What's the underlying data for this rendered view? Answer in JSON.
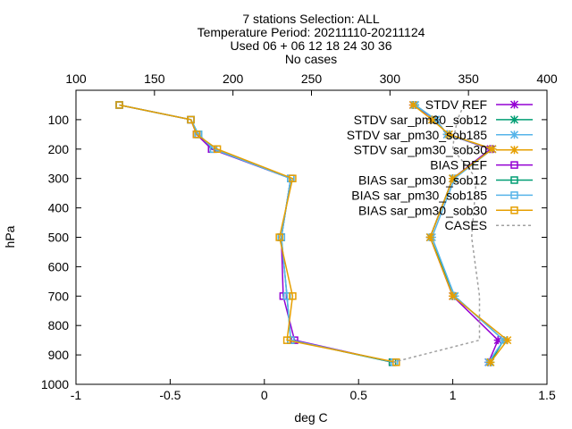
{
  "chart_data": {
    "type": "line",
    "title_lines": [
      "7 stations Selection: ALL",
      "Temperature  Period: 20211110-20211124",
      "Used 06 + 06 12 18 24 30 36",
      "No cases"
    ],
    "xlabel": "deg C",
    "ylabel": "hPa",
    "xlim": [
      -1,
      1.5
    ],
    "ylim": [
      1000,
      0
    ],
    "x2lim": [
      100,
      400
    ],
    "x_ticks": [
      "-1",
      "-0.5",
      "0",
      "0.5",
      "1",
      "1.5"
    ],
    "x2_ticks": [
      "100",
      "150",
      "200",
      "250",
      "300",
      "350",
      "400"
    ],
    "y_ticks": [
      "100",
      "200",
      "300",
      "400",
      "500",
      "600",
      "700",
      "800",
      "900",
      "1000"
    ],
    "grid": false,
    "legend_position": "top-right",
    "levels": [
      50,
      100,
      150,
      200,
      300,
      500,
      700,
      850,
      925
    ],
    "series": [
      {
        "name": "STDV REF",
        "marker": "x",
        "color": "#9400d3",
        "values": [
          0.79,
          0.91,
          0.97,
          1.2,
          1.0,
          0.88,
          1.0,
          1.24,
          1.19
        ]
      },
      {
        "name": "STDV sar_pm30_sob12",
        "marker": "x",
        "color": "#009e73",
        "values": [
          0.8,
          0.91,
          0.97,
          1.21,
          1.0,
          0.88,
          1.01,
          1.27,
          1.2
        ]
      },
      {
        "name": "STDV sar_pm30_sob185",
        "marker": "x",
        "color": "#56b4e9",
        "values": [
          0.8,
          0.91,
          0.97,
          1.21,
          1.01,
          0.89,
          1.01,
          1.27,
          1.19
        ]
      },
      {
        "name": "STDV sar_pm30_sob30",
        "marker": "x",
        "color": "#e69f00",
        "values": [
          0.79,
          0.89,
          0.98,
          1.21,
          1.0,
          0.88,
          1.0,
          1.29,
          1.2
        ]
      },
      {
        "name": "BIAS REF",
        "marker": "square",
        "color": "#9400d3",
        "values": [
          -0.77,
          -0.39,
          -0.36,
          -0.28,
          0.14,
          0.09,
          0.1,
          0.16,
          0.68
        ]
      },
      {
        "name": "BIAS sar_pm30_sob12",
        "marker": "square",
        "color": "#009e73",
        "values": [
          -0.77,
          -0.39,
          -0.35,
          -0.27,
          0.14,
          0.09,
          0.12,
          0.14,
          0.68
        ]
      },
      {
        "name": "BIAS sar_pm30_sob185",
        "marker": "square",
        "color": "#56b4e9",
        "values": [
          -0.77,
          -0.39,
          -0.35,
          -0.27,
          0.14,
          0.09,
          0.12,
          0.14,
          0.69
        ]
      },
      {
        "name": "BIAS sar_pm30_sob30",
        "marker": "square",
        "color": "#e69f00",
        "values": [
          -0.77,
          -0.39,
          -0.36,
          -0.25,
          0.15,
          0.08,
          0.15,
          0.12,
          0.7
        ]
      },
      {
        "name": "CASES",
        "marker": "none",
        "color": "#a0a0a0",
        "dashed": true,
        "axis": "x2",
        "values": [
          347,
          343,
          341,
          340,
          355,
          352,
          357,
          357,
          302
        ]
      }
    ]
  }
}
